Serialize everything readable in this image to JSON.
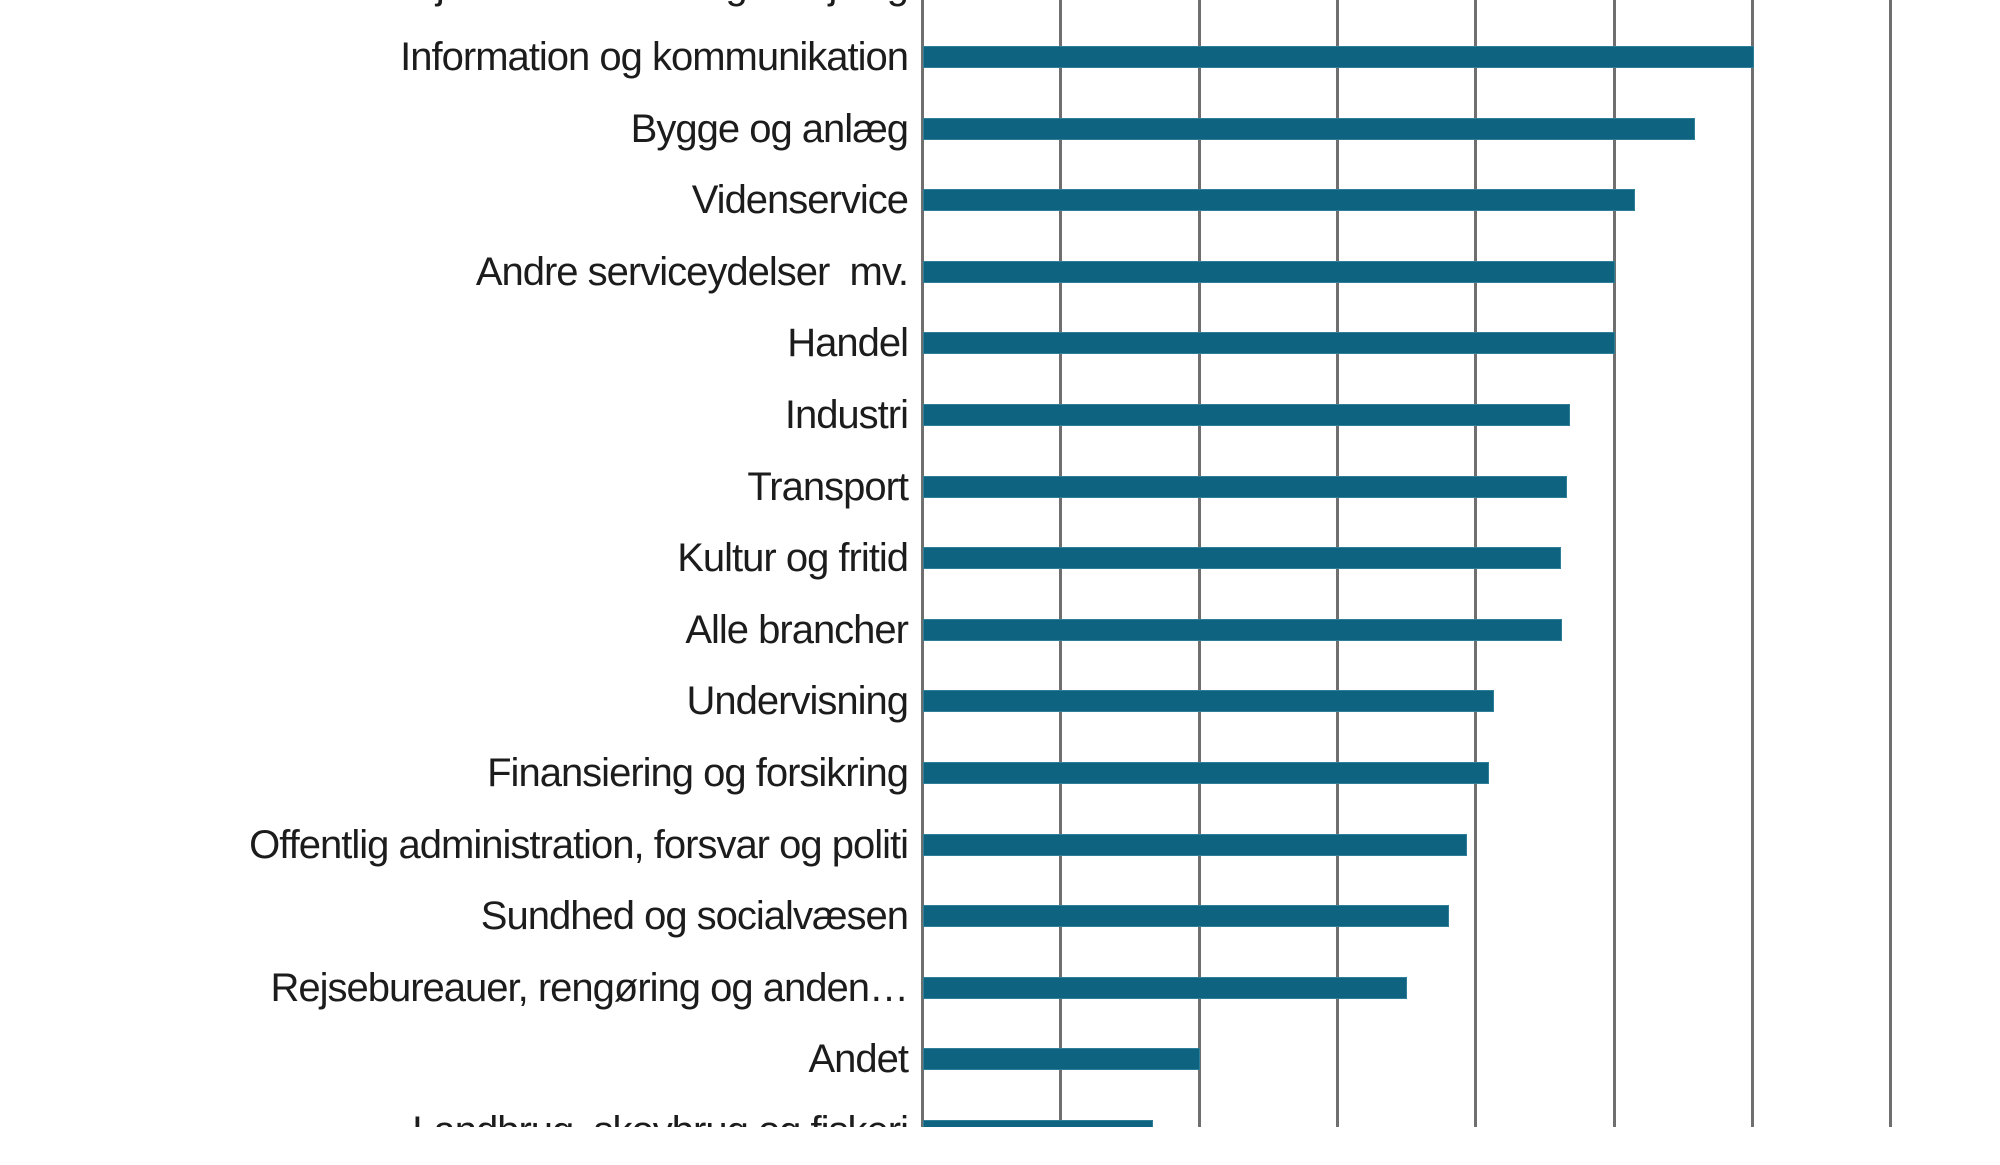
{
  "chart_data": {
    "type": "bar",
    "orientation": "horizontal",
    "title": "",
    "xlabel": "",
    "ylabel": "",
    "categories": [
      "Ejendomshandel og udlejning",
      "Information og kommunikation",
      "Bygge og anlæg",
      "Videnservice",
      "Andre serviceydelser  mv.",
      "Handel",
      "Industri",
      "Transport",
      "Kultur og fritid",
      "Alle brancher",
      "Undervisning",
      "Finansiering og forsikring",
      "Offentlig administration, forsvar og politi",
      "Sundhed og socialvæsen",
      "Rejsebureauer, rengøring og anden…",
      "Andet",
      "Landbrug, skovbrug og fiskeri"
    ],
    "values": [
      null,
      6.01,
      5.58,
      5.15,
      5.0,
      5.0,
      4.68,
      4.66,
      4.61,
      4.62,
      4.13,
      4.09,
      3.93,
      3.8,
      3.5,
      2.0,
      1.66
    ],
    "value_unit": "gridline-intervals (axis tick labels are cropped out of the visible image)",
    "xlim": [
      0,
      7.8
    ],
    "grid": true,
    "gridline_count": 8,
    "legend": null,
    "bar_color": "#0E6480",
    "gridline_color": "#6f6f6f",
    "text_color": "#1c1c1c",
    "notes": "Screenshot shows a vertically cropped chart: the first category's bar and its label (only letter descenders visible) are cut off at the top; the last category's bar and label are cut off at y≈1127; no axis tick labels, title or legend are visible."
  }
}
